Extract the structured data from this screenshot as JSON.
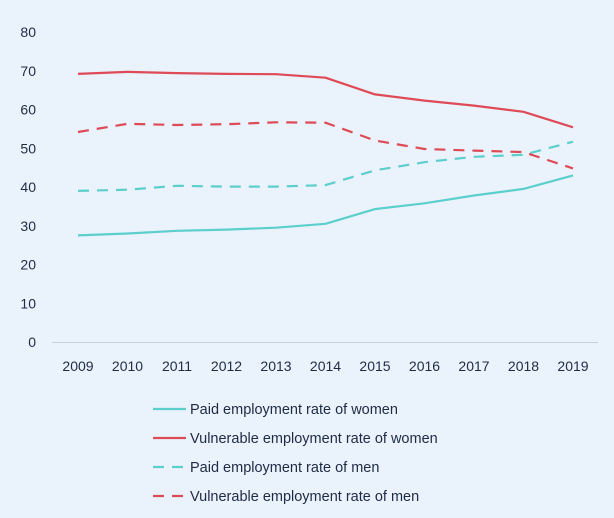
{
  "chart_data": {
    "type": "line",
    "title": "",
    "xlabel": "",
    "ylabel": "",
    "x": [
      2009,
      2010,
      2011,
      2012,
      2013,
      2014,
      2015,
      2016,
      2017,
      2018,
      2019
    ],
    "x_tick_labels": [
      "2009",
      "2010",
      "2011",
      "2012",
      "2013",
      "2014",
      "2015",
      "2016",
      "2017",
      "2018",
      "2019"
    ],
    "ylim": [
      0,
      80
    ],
    "y_ticks": [
      0,
      10,
      20,
      30,
      40,
      50,
      60,
      70,
      80
    ],
    "y_tick_labels": [
      "0",
      "10",
      "20",
      "30",
      "40",
      "50",
      "60",
      "70",
      "80"
    ],
    "grid": false,
    "legend_position": "bottom",
    "series": [
      {
        "name": "Paid employment rate of women",
        "color": "#5ccfcc",
        "dashed": false,
        "values": [
          27.5,
          28.0,
          28.7,
          29.0,
          29.5,
          30.5,
          34.3,
          35.8,
          37.8,
          39.5,
          43.0
        ]
      },
      {
        "name": "Vulnerable employment rate of women",
        "color": "#de4a55",
        "dashed": false,
        "values": [
          69.2,
          69.7,
          69.4,
          69.2,
          69.1,
          68.2,
          63.9,
          62.3,
          61.0,
          59.4,
          55.4
        ]
      },
      {
        "name": "Paid employment rate of men",
        "color": "#5ccfcc",
        "dashed": true,
        "values": [
          39.0,
          39.3,
          40.3,
          40.1,
          40.1,
          40.5,
          44.3,
          46.4,
          47.8,
          48.3,
          51.7
        ]
      },
      {
        "name": "Vulnerable employment rate of men",
        "color": "#de4a55",
        "dashed": true,
        "values": [
          54.2,
          56.3,
          56.0,
          56.2,
          56.7,
          56.6,
          52.0,
          49.8,
          49.4,
          49.0,
          44.8
        ]
      }
    ]
  }
}
